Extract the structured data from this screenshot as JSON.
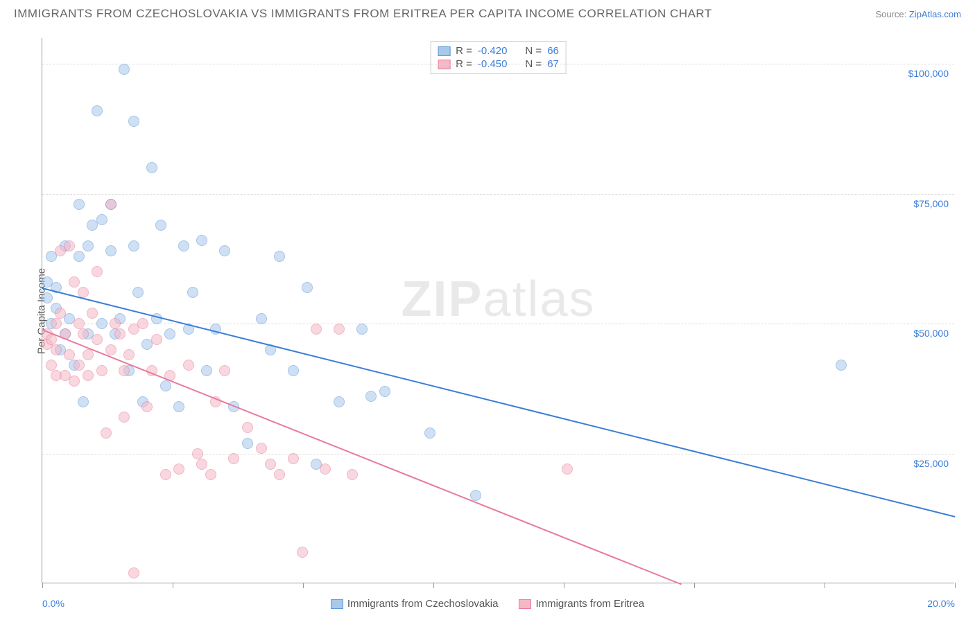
{
  "title": "IMMIGRANTS FROM CZECHOSLOVAKIA VS IMMIGRANTS FROM ERITREA PER CAPITA INCOME CORRELATION CHART",
  "source_prefix": "Source: ",
  "source_name": "ZipAtlas.com",
  "y_axis_label": "Per Capita Income",
  "watermark": "ZIPatlas",
  "chart": {
    "type": "scatter",
    "xlim": [
      0,
      20
    ],
    "ylim": [
      0,
      105000
    ],
    "y_ticks": [
      25000,
      50000,
      75000,
      100000
    ],
    "y_tick_labels": [
      "$25,000",
      "$50,000",
      "$75,000",
      "$100,000"
    ],
    "x_ticks": [
      0,
      2.86,
      5.71,
      8.57,
      11.43,
      14.29,
      17.14,
      20
    ],
    "x_tick_labels_shown": {
      "0": "0.0%",
      "20": "20.0%"
    },
    "background_color": "#ffffff",
    "grid_color": "#dddddd",
    "axis_color": "#999999",
    "dot_radius": 8,
    "dot_opacity": 0.55,
    "dot_stroke_width": 1.2
  },
  "series": [
    {
      "name": "Immigrants from Czechoslovakia",
      "fill": "#a8c8ec",
      "stroke": "#5a96d6",
      "R": "-0.420",
      "N": "66",
      "trend": {
        "x1": 0,
        "y1": 57000,
        "x2": 20,
        "y2": 13000,
        "color": "#3b7dd8",
        "width": 2
      },
      "points": [
        [
          0.1,
          55000
        ],
        [
          0.1,
          58000
        ],
        [
          0.2,
          63000
        ],
        [
          0.2,
          50000
        ],
        [
          0.3,
          53000
        ],
        [
          0.3,
          57000
        ],
        [
          0.4,
          45000
        ],
        [
          0.5,
          65000
        ],
        [
          0.5,
          48000
        ],
        [
          0.6,
          51000
        ],
        [
          0.7,
          42000
        ],
        [
          0.8,
          63000
        ],
        [
          0.8,
          73000
        ],
        [
          0.9,
          35000
        ],
        [
          1.0,
          65000
        ],
        [
          1.0,
          48000
        ],
        [
          1.1,
          69000
        ],
        [
          1.2,
          91000
        ],
        [
          1.3,
          50000
        ],
        [
          1.3,
          70000
        ],
        [
          1.5,
          73000
        ],
        [
          1.5,
          64000
        ],
        [
          1.6,
          48000
        ],
        [
          1.7,
          51000
        ],
        [
          1.8,
          99000
        ],
        [
          1.9,
          41000
        ],
        [
          2.0,
          89000
        ],
        [
          2.0,
          65000
        ],
        [
          2.1,
          56000
        ],
        [
          2.2,
          35000
        ],
        [
          2.3,
          46000
        ],
        [
          2.4,
          80000
        ],
        [
          2.5,
          51000
        ],
        [
          2.6,
          69000
        ],
        [
          2.7,
          38000
        ],
        [
          2.8,
          48000
        ],
        [
          3.0,
          34000
        ],
        [
          3.1,
          65000
        ],
        [
          3.2,
          49000
        ],
        [
          3.3,
          56000
        ],
        [
          3.5,
          66000
        ],
        [
          3.6,
          41000
        ],
        [
          3.8,
          49000
        ],
        [
          4.0,
          64000
        ],
        [
          4.2,
          34000
        ],
        [
          4.5,
          27000
        ],
        [
          4.8,
          51000
        ],
        [
          5.0,
          45000
        ],
        [
          5.2,
          63000
        ],
        [
          5.5,
          41000
        ],
        [
          5.8,
          57000
        ],
        [
          6.0,
          23000
        ],
        [
          6.5,
          35000
        ],
        [
          7.0,
          49000
        ],
        [
          7.2,
          36000
        ],
        [
          7.5,
          37000
        ],
        [
          8.5,
          29000
        ],
        [
          9.5,
          17000
        ],
        [
          17.5,
          42000
        ]
      ]
    },
    {
      "name": "Immigrants from Eritrea",
      "fill": "#f4b8c6",
      "stroke": "#e87a9a",
      "R": "-0.450",
      "N": "67",
      "trend": {
        "x1": 0,
        "y1": 49000,
        "x2": 14,
        "y2": 0,
        "color": "#e87a9a",
        "width": 2
      },
      "points": [
        [
          0.1,
          46000
        ],
        [
          0.1,
          48000
        ],
        [
          0.2,
          47000
        ],
        [
          0.2,
          42000
        ],
        [
          0.3,
          50000
        ],
        [
          0.3,
          45000
        ],
        [
          0.3,
          40000
        ],
        [
          0.4,
          64000
        ],
        [
          0.4,
          52000
        ],
        [
          0.5,
          40000
        ],
        [
          0.5,
          48000
        ],
        [
          0.6,
          44000
        ],
        [
          0.6,
          65000
        ],
        [
          0.7,
          58000
        ],
        [
          0.7,
          39000
        ],
        [
          0.8,
          50000
        ],
        [
          0.8,
          42000
        ],
        [
          0.9,
          48000
        ],
        [
          0.9,
          56000
        ],
        [
          1.0,
          40000
        ],
        [
          1.0,
          44000
        ],
        [
          1.1,
          52000
        ],
        [
          1.2,
          47000
        ],
        [
          1.2,
          60000
        ],
        [
          1.3,
          41000
        ],
        [
          1.4,
          29000
        ],
        [
          1.5,
          45000
        ],
        [
          1.5,
          73000
        ],
        [
          1.6,
          50000
        ],
        [
          1.7,
          48000
        ],
        [
          1.8,
          32000
        ],
        [
          1.8,
          41000
        ],
        [
          1.9,
          44000
        ],
        [
          2.0,
          2000
        ],
        [
          2.0,
          49000
        ],
        [
          2.2,
          50000
        ],
        [
          2.3,
          34000
        ],
        [
          2.4,
          41000
        ],
        [
          2.5,
          47000
        ],
        [
          2.7,
          21000
        ],
        [
          2.8,
          40000
        ],
        [
          3.0,
          22000
        ],
        [
          3.2,
          42000
        ],
        [
          3.4,
          25000
        ],
        [
          3.5,
          23000
        ],
        [
          3.7,
          21000
        ],
        [
          3.8,
          35000
        ],
        [
          4.0,
          41000
        ],
        [
          4.2,
          24000
        ],
        [
          4.5,
          30000
        ],
        [
          4.8,
          26000
        ],
        [
          5.0,
          23000
        ],
        [
          5.2,
          21000
        ],
        [
          5.5,
          24000
        ],
        [
          5.7,
          6000
        ],
        [
          6.0,
          49000
        ],
        [
          6.2,
          22000
        ],
        [
          6.5,
          49000
        ],
        [
          6.8,
          21000
        ],
        [
          11.5,
          22000
        ]
      ]
    }
  ],
  "legend_labels": {
    "R": "R =",
    "N": "N ="
  }
}
